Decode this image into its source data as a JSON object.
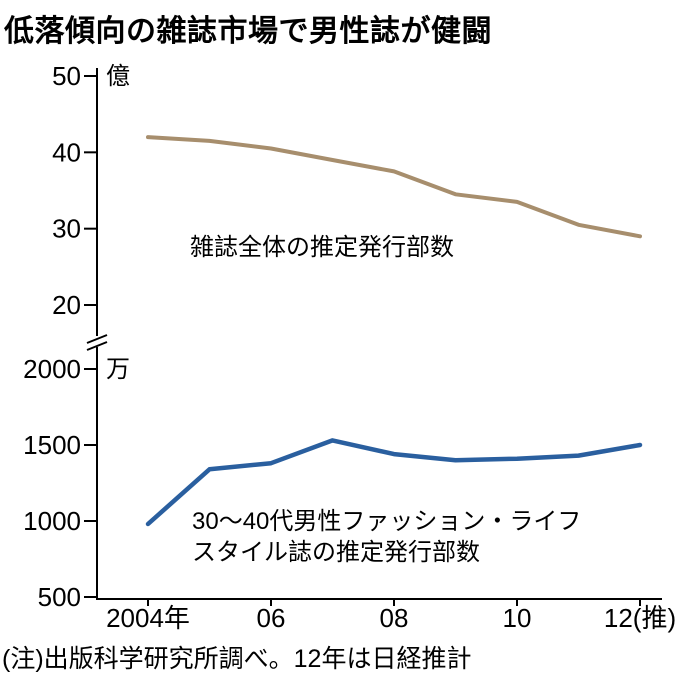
{
  "title": "低落傾向の雑誌市場で男性誌が健闘",
  "note": "(注)出版科学研究所調べ。12年は日経推計",
  "chart_data": {
    "type": "line",
    "title": "低落傾向の雑誌市場で男性誌が健闘",
    "x": [
      2004,
      2005,
      2006,
      2007,
      2008,
      2009,
      2010,
      2011,
      2012
    ],
    "x_axis": {
      "tick_years": [
        2004,
        2006,
        2008,
        2010,
        2012
      ],
      "tick_labels": [
        "2004年",
        "06",
        "08",
        "10",
        "12(推)"
      ]
    },
    "axis_break": true,
    "grid": false,
    "legend_position": "inline-annotations",
    "panels": [
      {
        "unit": "億",
        "ylim": [
          20,
          50
        ],
        "yticks": [
          50,
          40,
          30,
          20
        ],
        "annotation": "雑誌全体の推定発行部数",
        "series": [
          {
            "name": "雑誌全体の推定発行部数",
            "color": "#a78e6d",
            "values": [
              42,
              41.5,
              40.5,
              39,
              37.5,
              34.5,
              33.5,
              30.5,
              29
            ]
          }
        ]
      },
      {
        "unit": "万",
        "ylim": [
          500,
          2000
        ],
        "yticks": [
          2000,
          1500,
          1000,
          500
        ],
        "annotation_lines": [
          "30〜40代男性ファッション・ライフ",
          "スタイル誌の推定発行部数"
        ],
        "series": [
          {
            "name": "30〜40代男性ファッション・ライフスタイル誌の推定発行部数",
            "color": "#2a5f9f",
            "values": [
              980,
              1340,
              1380,
              1530,
              1440,
              1400,
              1410,
              1430,
              1500
            ]
          }
        ]
      }
    ],
    "note": "(注)出版科学研究所調べ。12年は日経推計"
  }
}
